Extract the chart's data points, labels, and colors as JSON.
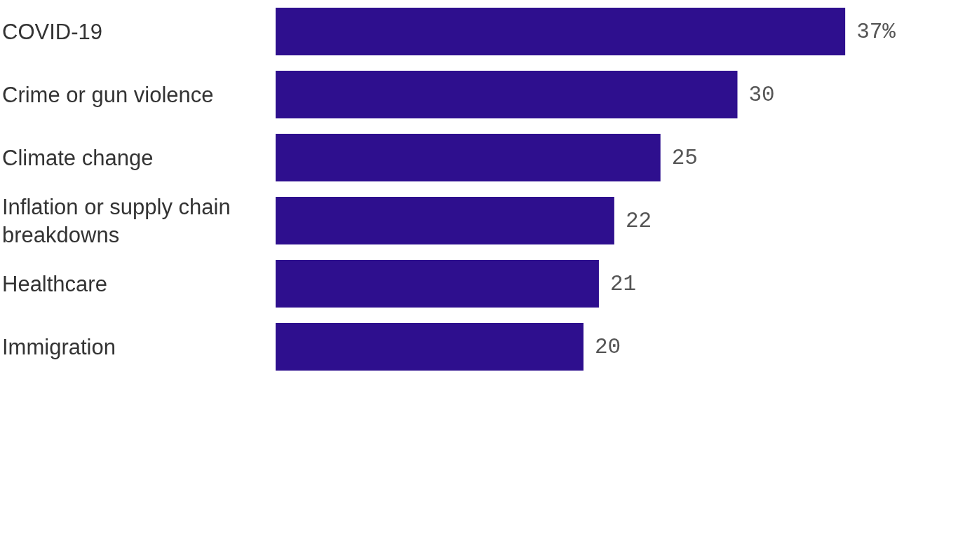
{
  "chart_data": {
    "type": "bar",
    "orientation": "horizontal",
    "categories": [
      "COVID-19",
      "Crime or gun violence",
      "Climate change",
      "Inflation or supply chain breakdowns",
      "Healthcare",
      "Immigration"
    ],
    "values": [
      37,
      30,
      25,
      22,
      21,
      20
    ],
    "value_labels": [
      "37%",
      "30",
      "25",
      "22",
      "21",
      "20"
    ],
    "color": "#2e0f8e"
  }
}
